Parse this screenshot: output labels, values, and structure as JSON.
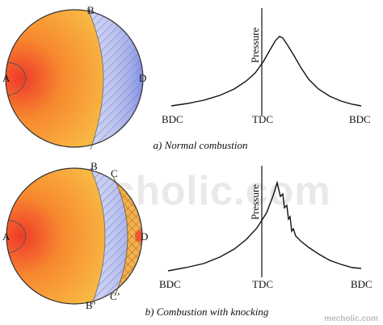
{
  "watermark": {
    "text": "mecholic.com",
    "corner": "mecholic.com"
  },
  "normal": {
    "caption": "a) Normal combustion",
    "points": {
      "A": "A",
      "B": "B",
      "D": "D"
    },
    "plot": {
      "ylabel": "Pressure",
      "bdc_left": "BDC",
      "tdc": "TDC",
      "bdc_right": "BDC"
    }
  },
  "knocking": {
    "caption": "b) Combustion with knocking",
    "points": {
      "A": "A",
      "B": "B",
      "C": "C",
      "D": "D",
      "B_prime": "B’",
      "C_prime": "C’"
    },
    "plot": {
      "ylabel": "Pressure",
      "bdc_left": "BDC",
      "tdc": "TDC",
      "bdc_right": "BDC"
    }
  },
  "colors": {
    "flame_red": "#ef3a2a",
    "flame_orange": "#f7b441",
    "hatch_blue": "#6f7fd6",
    "knock_orange": "#f0a53c"
  }
}
